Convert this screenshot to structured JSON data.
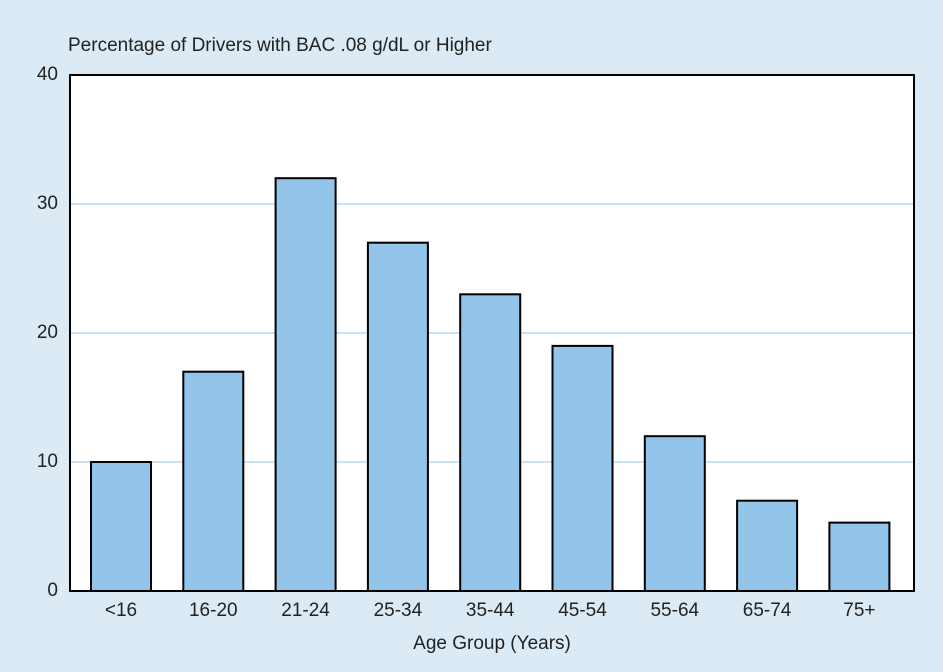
{
  "chart_data": {
    "type": "bar",
    "title": "Percentage of Drivers with BAC .08 g/dL or Higher",
    "x_label": "Age Group (Years)",
    "categories": [
      "<16",
      "16-20",
      "21-24",
      "25-34",
      "35-44",
      "45-54",
      "55-64",
      "65-74",
      "75+"
    ],
    "values": [
      10,
      17,
      32,
      27,
      23,
      19,
      12,
      7,
      5.3
    ],
    "color": "#93c4ea",
    "ylim": [
      0,
      40
    ],
    "yticks": [
      0,
      10,
      20,
      30,
      40
    ],
    "grid": true
  }
}
